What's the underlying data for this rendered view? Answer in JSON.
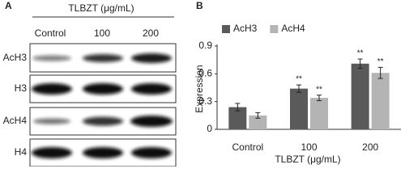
{
  "panel_a": {
    "label": "A",
    "header": "TLBZT (μg/mL)",
    "columns": [
      "Control",
      "100",
      "200"
    ],
    "rows": [
      "AcH3",
      "H3",
      "AcH4",
      "H4"
    ]
  },
  "chart_data": {
    "type": "bar",
    "label": "B",
    "y_label": "Expression",
    "x_label": "TLBZT (μg/mL)",
    "categories": [
      "Control",
      "100",
      "200"
    ],
    "series": [
      {
        "name": "AcH3",
        "color": "#5a5a5a",
        "values": [
          0.24,
          0.44,
          0.71
        ],
        "errors": [
          0.04,
          0.04,
          0.05
        ],
        "significance": [
          null,
          "**",
          "**"
        ]
      },
      {
        "name": "AcH4",
        "color": "#b4b4b4",
        "values": [
          0.15,
          0.34,
          0.61
        ],
        "errors": [
          0.03,
          0.03,
          0.06
        ],
        "significance": [
          null,
          "**",
          "**"
        ]
      }
    ],
    "ylim": [
      0,
      0.9
    ],
    "yticks": [
      0,
      0.3,
      0.6,
      0.9
    ],
    "legend": "top-left"
  }
}
